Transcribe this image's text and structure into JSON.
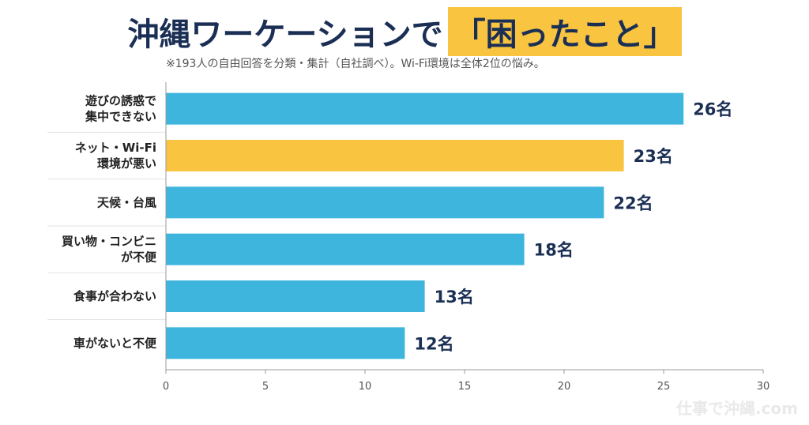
{
  "title": {
    "main": "沖縄ワーケーションで",
    "highlight": "「困ったこと」"
  },
  "subtitle": "※193人の自由回答を分類・集計（自社調べ）。Wi-Fi環境は全体2位の悩み。",
  "watermark": "仕事で沖縄.com",
  "chart_data": {
    "type": "bar",
    "orientation": "horizontal",
    "categories": [
      [
        "遊びの誘惑で",
        "集中できない"
      ],
      [
        "ネット・Wi-Fi",
        "環境が悪い"
      ],
      [
        "天候・台風"
      ],
      [
        "買い物・コンビニ",
        "が不便"
      ],
      [
        "食事が合わない"
      ],
      [
        "車がないと不便"
      ]
    ],
    "values": [
      26,
      23,
      22,
      18,
      13,
      12
    ],
    "value_labels": [
      "26名",
      "23名",
      "22名",
      "18名",
      "13名",
      "12名"
    ],
    "highlight_index": 1,
    "xlim": [
      0,
      30
    ],
    "xticks": [
      0,
      5,
      10,
      15,
      20,
      25,
      30
    ],
    "grid": false,
    "colors": {
      "bar": "#3db5dc",
      "highlight": "#f9c440",
      "axis": "#999999",
      "separator": "#e2e2e2"
    }
  }
}
